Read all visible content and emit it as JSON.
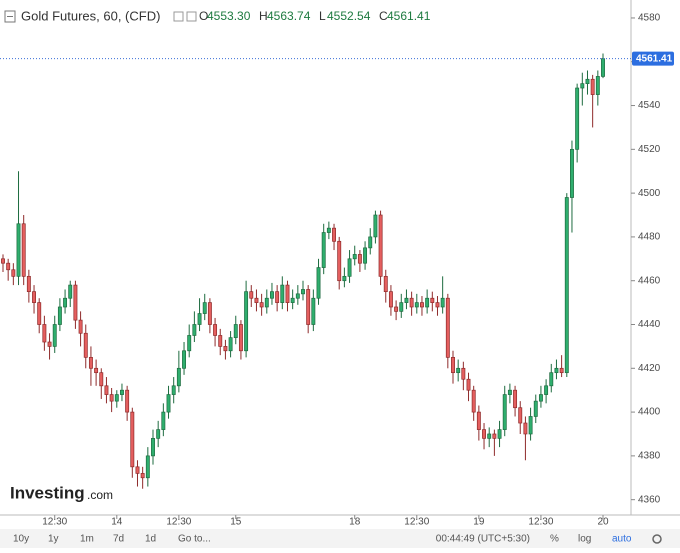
{
  "header": {
    "title": "Gold Futures, 60, (CFD)",
    "ohlc": [
      {
        "key": "O",
        "value": "4553.30"
      },
      {
        "key": "H",
        "value": "4563.74"
      },
      {
        "key": "L",
        "value": "4552.54"
      },
      {
        "key": "C",
        "value": "4561.41"
      }
    ]
  },
  "logo": {
    "brand": "Investing",
    "suffix": ".com"
  },
  "toolbar": {
    "ranges": [
      "10y",
      "1y",
      "1m",
      "7d",
      "1d",
      "Go to..."
    ],
    "clock": "00:44:49 (UTC+5:30)",
    "options": [
      "%",
      "log",
      "auto"
    ]
  },
  "chart_data": {
    "type": "candlestick",
    "up_color": "#2fae6e",
    "down_color": "#e45f5f",
    "up_border": "#1d6b3f",
    "down_border": "#8e2a2a",
    "ylim": [
      4353,
      4588.2
    ],
    "yticks": [
      4360,
      4380,
      4400,
      4420,
      4440,
      4460,
      4480,
      4500,
      4520,
      4540,
      4560,
      4580
    ],
    "categories": [
      null,
      null,
      null,
      null,
      null,
      null,
      null,
      null,
      null,
      null,
      "12:30",
      null,
      null,
      null,
      null,
      null,
      null,
      null,
      null,
      null,
      null,
      null,
      "14",
      null,
      null,
      null,
      null,
      null,
      null,
      null,
      null,
      null,
      null,
      null,
      "12:30",
      null,
      null,
      null,
      null,
      null,
      null,
      null,
      null,
      null,
      null,
      "15",
      null,
      null,
      null,
      null,
      null,
      null,
      null,
      null,
      null,
      null,
      null,
      null,
      null,
      null,
      null,
      null,
      null,
      null,
      null,
      null,
      null,
      null,
      "18",
      null,
      null,
      null,
      null,
      null,
      null,
      null,
      null,
      null,
      null,
      null,
      "12:30",
      null,
      null,
      null,
      null,
      null,
      null,
      null,
      null,
      null,
      null,
      null,
      "19",
      null,
      null,
      null,
      null,
      null,
      null,
      null,
      null,
      null,
      null,
      null,
      "12:30",
      null,
      null,
      null,
      null,
      null,
      null,
      null,
      null,
      null,
      null,
      null,
      "20"
    ],
    "open": [
      4470,
      4468,
      4465,
      4462,
      4486,
      4462,
      4455,
      4450,
      4440,
      4432,
      4430,
      4440,
      4448,
      4452,
      4458,
      4442,
      4436,
      4425,
      4420,
      4418,
      4412,
      4408,
      4405,
      4408,
      4410,
      4400,
      4375,
      4372,
      4370,
      4380,
      4388,
      4392,
      4400,
      4408,
      4412,
      4420,
      4428,
      4435,
      4440,
      4445,
      4450,
      4440,
      4435,
      4430,
      4428,
      4434,
      4440,
      4428,
      4455,
      4452,
      4450,
      4448,
      4452,
      4455,
      4450,
      4458,
      4450,
      4452,
      4454,
      4456,
      4440,
      4452,
      4466,
      4482,
      4484,
      4478,
      4460,
      4462,
      4470,
      4472,
      4468,
      4475,
      4480,
      4490,
      4462,
      4455,
      4448,
      4446,
      4450,
      4452,
      4448,
      4450,
      4448,
      4452,
      4450,
      4448,
      4452,
      4425,
      4418,
      4420,
      4415,
      4410,
      4400,
      4392,
      4388,
      4390,
      4388,
      4392,
      4408,
      4410,
      4402,
      4395,
      4390,
      4398,
      4405,
      4408,
      4412,
      4418,
      4420,
      4418,
      4498,
      4520,
      4548,
      4550,
      4552,
      4545,
      4553.3
    ],
    "high": [
      4472,
      4470,
      4468,
      4510,
      4490,
      4465,
      4458,
      4452,
      4444,
      4436,
      4444,
      4452,
      4456,
      4460,
      4460,
      4446,
      4440,
      4430,
      4424,
      4420,
      4416,
      4411,
      4410,
      4413,
      4412,
      4402,
      4378,
      4375,
      4384,
      4392,
      4396,
      4404,
      4412,
      4416,
      4428,
      4432,
      4440,
      4446,
      4452,
      4454,
      4452,
      4443,
      4438,
      4433,
      4437,
      4444,
      4442,
      4460,
      4458,
      4456,
      4454,
      4456,
      4459,
      4458,
      4462,
      4460,
      4456,
      4458,
      4460,
      4458,
      4456,
      4470,
      4486,
      4487,
      4486,
      4480,
      4466,
      4474,
      4476,
      4474,
      4478,
      4484,
      4492,
      4492,
      4465,
      4458,
      4451,
      4454,
      4456,
      4455,
      4454,
      4453,
      4456,
      4455,
      4453,
      4462,
      4454,
      4428,
      4424,
      4423,
      4418,
      4412,
      4403,
      4395,
      4393,
      4392,
      4396,
      4412,
      4413,
      4412,
      4405,
      4398,
      4402,
      4408,
      4412,
      4415,
      4422,
      4424,
      4426,
      4500,
      4524,
      4550,
      4555,
      4556,
      4554,
      4556,
      4563.74
    ],
    "low": [
      4464,
      4460,
      4458,
      4458,
      4458,
      4450,
      4445,
      4436,
      4428,
      4424,
      4427,
      4437,
      4445,
      4448,
      4438,
      4430,
      4420,
      4412,
      4412,
      4406,
      4404,
      4400,
      4402,
      4405,
      4396,
      4370,
      4366,
      4365,
      4366,
      4376,
      4384,
      4389,
      4397,
      4404,
      4409,
      4417,
      4425,
      4432,
      4437,
      4442,
      4436,
      4430,
      4426,
      4424,
      4425,
      4431,
      4424,
      4425,
      4448,
      4446,
      4444,
      4445,
      4449,
      4446,
      4447,
      4446,
      4447,
      4449,
      4451,
      4436,
      4437,
      4449,
      4463,
      4479,
      4474,
      4456,
      4457,
      4459,
      4467,
      4464,
      4465,
      4472,
      4477,
      4458,
      4450,
      4444,
      4442,
      4443,
      4447,
      4444,
      4445,
      4444,
      4445,
      4446,
      4444,
      4445,
      4420,
      4413,
      4414,
      4410,
      4405,
      4396,
      4387,
      4383,
      4384,
      4380,
      4384,
      4389,
      4404,
      4398,
      4390,
      4378,
      4387,
      4395,
      4402,
      4404,
      4409,
      4415,
      4416,
      4416,
      4482,
      4514,
      4540,
      4545,
      4530,
      4540,
      4552.54
    ],
    "close": [
      4468,
      4465,
      4462,
      4486,
      4462,
      4455,
      4450,
      4440,
      4432,
      4430,
      4440,
      4448,
      4452,
      4458,
      4442,
      4436,
      4425,
      4420,
      4418,
      4412,
      4408,
      4405,
      4408,
      4410,
      4400,
      4375,
      4372,
      4370,
      4380,
      4388,
      4392,
      4400,
      4408,
      4412,
      4420,
      4428,
      4435,
      4440,
      4445,
      4450,
      4440,
      4435,
      4430,
      4428,
      4434,
      4440,
      4428,
      4455,
      4452,
      4450,
      4448,
      4452,
      4455,
      4450,
      4458,
      4450,
      4452,
      4454,
      4456,
      4440,
      4452,
      4466,
      4482,
      4484,
      4478,
      4460,
      4462,
      4470,
      4472,
      4468,
      4475,
      4480,
      4490,
      4462,
      4455,
      4448,
      4446,
      4450,
      4452,
      4448,
      4450,
      4448,
      4452,
      4450,
      4448,
      4452,
      4425,
      4418,
      4420,
      4415,
      4410,
      4400,
      4392,
      4388,
      4390,
      4388,
      4392,
      4408,
      4410,
      4402,
      4395,
      4390,
      4398,
      4405,
      4408,
      4412,
      4418,
      4420,
      4418,
      4498,
      4520,
      4548,
      4550,
      4552,
      4545,
      4553.3,
      4561.41
    ]
  }
}
